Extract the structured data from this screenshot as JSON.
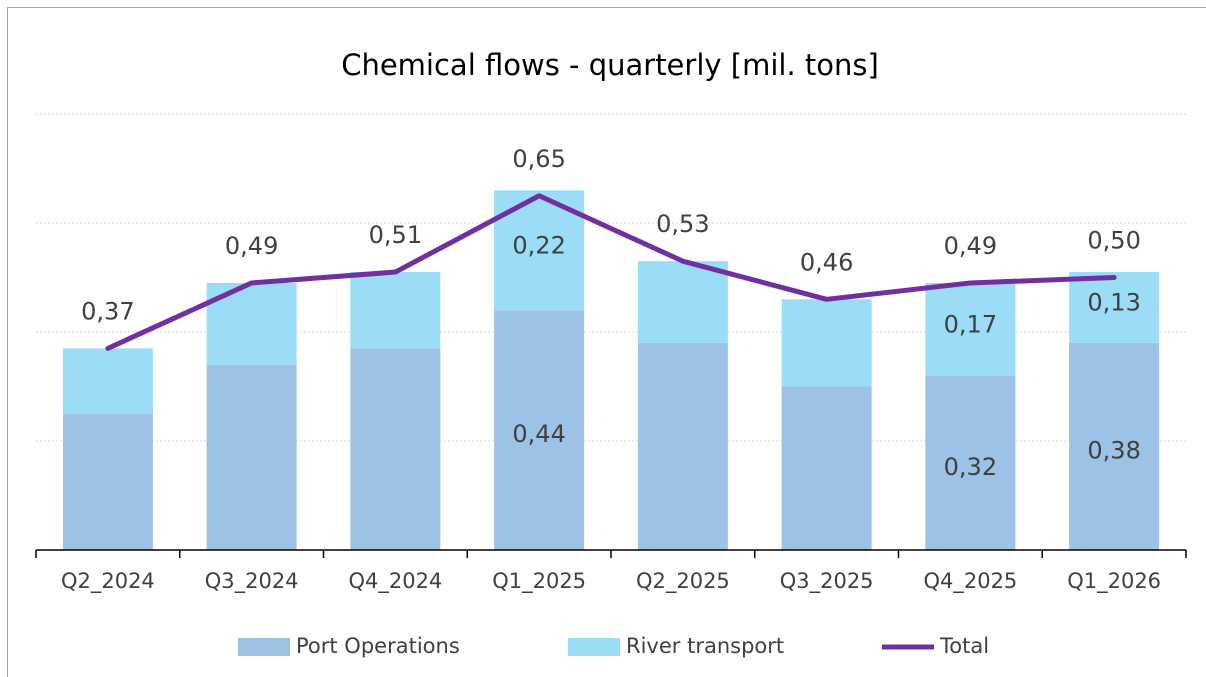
{
  "chart_data": {
    "type": "bar-line",
    "title": "Chemical flows - quarterly [mil. tons]",
    "categories": [
      "Q2_2024",
      "Q3_2024",
      "Q4_2024",
      "Q1_2025",
      "Q2_2025",
      "Q3_2025",
      "Q4_2025",
      "Q1_2026"
    ],
    "series": [
      {
        "name": "Port Operations",
        "color": "#9cc3e5",
        "kind": "bar",
        "values": [
          0.25,
          0.34,
          0.37,
          0.44,
          0.38,
          0.3,
          0.32,
          0.38
        ],
        "value_labels": [
          null,
          null,
          null,
          "0,44",
          null,
          null,
          "0,32",
          "0,38"
        ]
      },
      {
        "name": "River transport",
        "color": "#9bdcf7",
        "kind": "bar",
        "values": [
          0.12,
          0.15,
          0.14,
          0.22,
          0.15,
          0.16,
          0.17,
          0.13
        ],
        "value_labels": [
          null,
          null,
          null,
          "0,22",
          null,
          null,
          "0,17",
          "0,13"
        ]
      },
      {
        "name": "Total",
        "color": "#7030a0",
        "kind": "line",
        "values": [
          0.37,
          0.49,
          0.51,
          0.65,
          0.53,
          0.46,
          0.49,
          0.5
        ],
        "value_labels": [
          "0,37",
          "0,49",
          "0,51",
          "0,65",
          "0,53",
          "0,46",
          "0,49",
          "0,50"
        ]
      }
    ],
    "ylim": [
      0,
      0.8
    ],
    "gridlines": [
      0.2,
      0.4,
      0.6,
      0.8
    ],
    "grid": true,
    "legend": "bottom"
  }
}
